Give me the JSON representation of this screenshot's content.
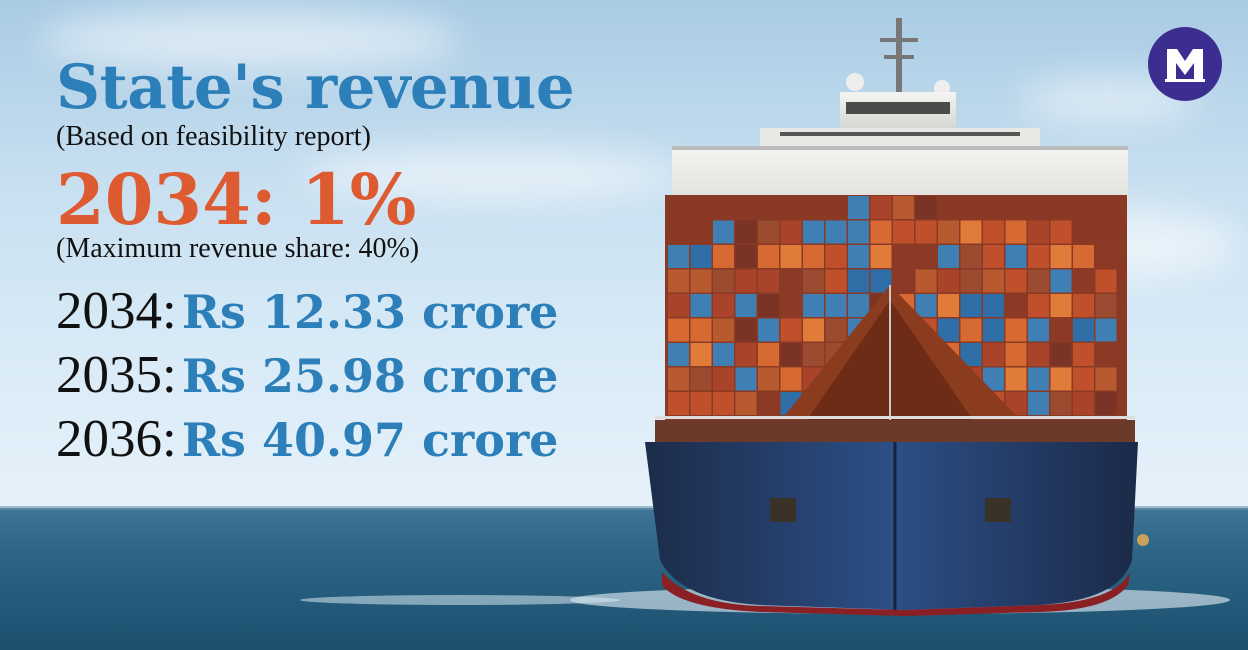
{
  "headline": "State's revenue",
  "subheadline": "(Based on feasibility report)",
  "highlight": "2034: 1%",
  "highlight_note": "(Maximum revenue share: 40%)",
  "revenue_rows": [
    {
      "year": "2034:",
      "amount": "Rs 12.33 crore"
    },
    {
      "year": "2035:",
      "amount": "Rs 25.98 crore"
    },
    {
      "year": "2036:",
      "amount": "Rs 40.97 crore"
    }
  ],
  "colors": {
    "headline": "#2c7fb8",
    "highlight": "#de5a31",
    "amount": "#2c7fb8",
    "text": "#111111",
    "logo_bg": "#3c2e91"
  },
  "logo_icon": "publisher-m-logo",
  "background_image": "container-ship-at-sea"
}
